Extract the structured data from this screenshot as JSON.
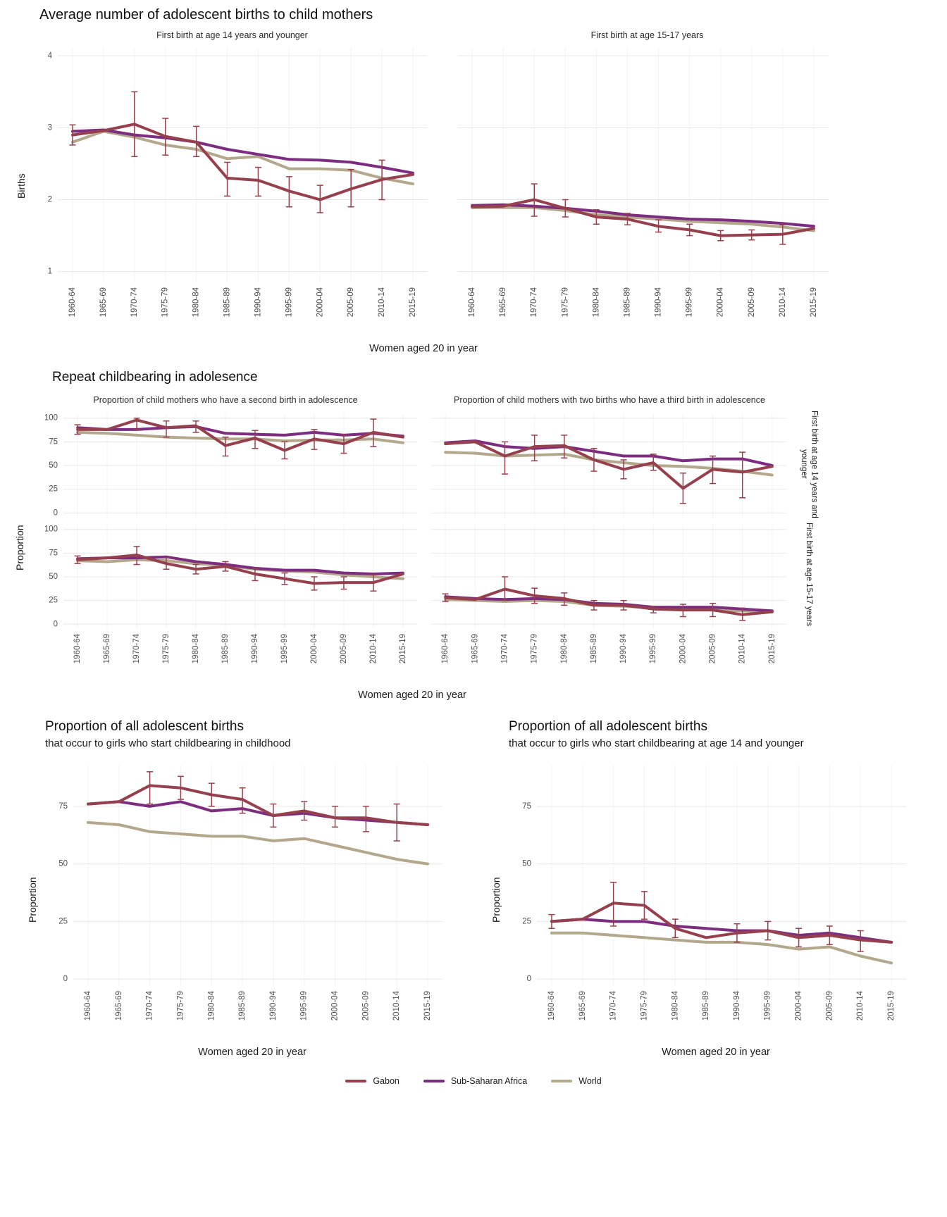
{
  "sections": {
    "s1": {
      "title": "Average number of adolescent births to child mothers",
      "ylab": "Births",
      "xlab": "Women aged 20 in year"
    },
    "s2": {
      "title": "Repeat childbearing in adolesence",
      "ylab": "Proportion",
      "xlab": "Women aged 20 in year",
      "col_titles": [
        "Proportion of child mothers who have a second birth in adolescence",
        "Proportion of child mothers with two births who have a third birth in adolescence"
      ],
      "row_strips": [
        "First birth at age 14 years and younger",
        "First birth at age 15-17 years"
      ]
    },
    "s3": {
      "left": {
        "title": "Proportion of all adolescent births",
        "subtitle": "that occur to girls who start childbearing in childhood",
        "ylab": "Proportion",
        "xlab": "Women aged 20 in year"
      },
      "right": {
        "title": "Proportion of all adolescent births",
        "subtitle": "that occur to girls who start childbearing at age 14 and younger",
        "ylab": "Proportion",
        "xlab": "Women aged 20 in year"
      }
    }
  },
  "legend": {
    "items": [
      {
        "label": "Gabon",
        "color": "#96404e"
      },
      {
        "label": "Sub-Saharan Africa",
        "color": "#7d2d80"
      },
      {
        "label": "World",
        "color": "#b3a78c"
      }
    ]
  },
  "chart_data": [
    {
      "type": "line",
      "title": "First birth at age 14 years and younger",
      "categories": [
        "1960-64",
        "1965-69",
        "1970-74",
        "1975-79",
        "1980-84",
        "1985-89",
        "1990-94",
        "1995-99",
        "2000-04",
        "2005-09",
        "2010-14",
        "2015-19"
      ],
      "ylim": [
        0.85,
        4.12
      ],
      "yticks": [
        1,
        2,
        3,
        4
      ],
      "series": [
        {
          "name": "Gabon",
          "color": "#96404e",
          "values": [
            2.9,
            2.96,
            3.05,
            2.88,
            2.8,
            2.3,
            2.27,
            2.12,
            2.0,
            2.15,
            2.28,
            2.35
          ],
          "err_low": [
            2.76,
            null,
            2.6,
            2.62,
            2.6,
            2.05,
            2.05,
            1.9,
            1.82,
            1.9,
            2.0,
            null
          ],
          "err_high": [
            3.04,
            null,
            3.5,
            3.13,
            3.02,
            2.52,
            2.45,
            2.32,
            2.2,
            2.42,
            2.55,
            null
          ]
        },
        {
          "name": "Sub-Saharan Africa",
          "color": "#7d2d80",
          "values": [
            2.95,
            2.97,
            2.9,
            2.86,
            2.8,
            2.7,
            2.63,
            2.56,
            2.55,
            2.52,
            2.45,
            2.37
          ]
        },
        {
          "name": "World",
          "color": "#b3a78c",
          "values": [
            2.8,
            2.95,
            2.87,
            2.76,
            2.7,
            2.57,
            2.6,
            2.43,
            2.43,
            2.41,
            2.3,
            2.22
          ]
        }
      ]
    },
    {
      "type": "line",
      "title": "First birth at age 15-17 years",
      "categories": [
        "1960-64",
        "1965-69",
        "1970-74",
        "1975-79",
        "1980-84",
        "1985-89",
        "1990-94",
        "1995-99",
        "2000-04",
        "2005-09",
        "2010-14",
        "2015-19"
      ],
      "ylim": [
        0.85,
        4.12
      ],
      "yticks": [
        1,
        2,
        3,
        4
      ],
      "series": [
        {
          "name": "Gabon",
          "color": "#96404e",
          "values": [
            1.9,
            1.91,
            2.0,
            1.88,
            1.76,
            1.73,
            1.63,
            1.58,
            1.5,
            1.51,
            1.52,
            1.6
          ],
          "err_low": [
            null,
            null,
            1.77,
            1.76,
            1.66,
            1.65,
            1.55,
            1.5,
            1.43,
            1.44,
            1.38,
            null
          ],
          "err_high": [
            null,
            null,
            2.22,
            2.0,
            1.86,
            1.81,
            1.72,
            1.66,
            1.57,
            1.58,
            1.65,
            null
          ]
        },
        {
          "name": "Sub-Saharan Africa",
          "color": "#7d2d80",
          "values": [
            1.92,
            1.93,
            1.91,
            1.88,
            1.84,
            1.79,
            1.76,
            1.73,
            1.72,
            1.7,
            1.67,
            1.63
          ]
        },
        {
          "name": "World",
          "color": "#b3a78c",
          "values": [
            1.89,
            1.89,
            1.89,
            1.85,
            1.79,
            1.76,
            1.73,
            1.7,
            1.68,
            1.66,
            1.62,
            1.57
          ]
        }
      ]
    },
    {
      "type": "line",
      "title": "Second birth in adolescence",
      "col_title": "Proportion of child mothers who have a second birth in adolescence",
      "row_strip": "First birth at age 14 years and younger",
      "categories": [
        "1960-64",
        "1965-69",
        "1970-74",
        "1975-79",
        "1980-84",
        "1985-89",
        "1990-94",
        "1995-99",
        "2000-04",
        "2005-09",
        "2010-14",
        "2015-19"
      ],
      "ylim": [
        -5,
        105
      ],
      "yticks": [
        0,
        25,
        50,
        75,
        100
      ],
      "series": [
        {
          "name": "Gabon",
          "color": "#96404e",
          "values": [
            88,
            88,
            98,
            90,
            92,
            71,
            79,
            66,
            78,
            73,
            85,
            80
          ],
          "err_low": [
            83,
            null,
            88,
            80,
            85,
            60,
            68,
            57,
            67,
            63,
            70,
            null
          ],
          "err_high": [
            93,
            null,
            100,
            97,
            97,
            80,
            87,
            75,
            88,
            82,
            99,
            null
          ]
        },
        {
          "name": "Sub-Saharan Africa",
          "color": "#7d2d80",
          "values": [
            90,
            88,
            88,
            90,
            91,
            84,
            83,
            82,
            85,
            82,
            84,
            81
          ]
        },
        {
          "name": "World",
          "color": "#b3a78c",
          "values": [
            85,
            84,
            82,
            80,
            79,
            78,
            78,
            76,
            77,
            77,
            78,
            74
          ]
        }
      ]
    },
    {
      "type": "line",
      "title": "Third birth in adolescence",
      "col_title": "Proportion of child mothers with two births who have a third birth in adolescence",
      "row_strip": "First birth at age 14 years and younger",
      "categories": [
        "1960-64",
        "1965-69",
        "1970-74",
        "1975-79",
        "1980-84",
        "1985-89",
        "1990-94",
        "1995-99",
        "2000-04",
        "2005-09",
        "2010-14",
        "2015-19"
      ],
      "ylim": [
        -5,
        105
      ],
      "yticks": [
        0,
        25,
        50,
        75,
        100
      ],
      "series": [
        {
          "name": "Gabon",
          "color": "#96404e",
          "values": [
            73,
            75,
            60,
            70,
            71,
            56,
            46,
            53,
            26,
            46,
            43,
            49
          ],
          "err_low": [
            null,
            null,
            41,
            55,
            58,
            44,
            36,
            45,
            10,
            31,
            16,
            null
          ],
          "err_high": [
            null,
            null,
            75,
            82,
            82,
            68,
            56,
            62,
            42,
            60,
            64,
            null
          ]
        },
        {
          "name": "Sub-Saharan Africa",
          "color": "#7d2d80",
          "values": [
            74,
            76,
            70,
            68,
            70,
            65,
            60,
            60,
            55,
            57,
            57,
            50
          ]
        },
        {
          "name": "World",
          "color": "#b3a78c",
          "values": [
            64,
            63,
            60,
            61,
            62,
            56,
            53,
            50,
            49,
            47,
            44,
            40
          ]
        }
      ]
    },
    {
      "type": "line",
      "title": "Second birth in adolescence",
      "col_title": "Proportion of child mothers who have a second birth in adolescence",
      "row_strip": "First birth at age 15-17 years",
      "categories": [
        "1960-64",
        "1965-69",
        "1970-74",
        "1975-79",
        "1980-84",
        "1985-89",
        "1990-94",
        "1995-99",
        "2000-04",
        "2005-09",
        "2010-14",
        "2015-19"
      ],
      "ylim": [
        -5,
        105
      ],
      "yticks": [
        0,
        25,
        50,
        75,
        100
      ],
      "series": [
        {
          "name": "Gabon",
          "color": "#96404e",
          "values": [
            68,
            70,
            73,
            64,
            58,
            61,
            53,
            48,
            43,
            44,
            44,
            53
          ],
          "err_low": [
            64,
            null,
            63,
            58,
            53,
            56,
            46,
            42,
            36,
            37,
            35,
            null
          ],
          "err_high": [
            72,
            null,
            82,
            70,
            63,
            66,
            59,
            54,
            50,
            50,
            52,
            null
          ]
        },
        {
          "name": "Sub-Saharan Africa",
          "color": "#7d2d80",
          "values": [
            69,
            70,
            70,
            71,
            66,
            63,
            59,
            57,
            57,
            54,
            53,
            54
          ]
        },
        {
          "name": "World",
          "color": "#b3a78c",
          "values": [
            67,
            66,
            68,
            67,
            64,
            62,
            58,
            56,
            55,
            52,
            50,
            48
          ]
        }
      ]
    },
    {
      "type": "line",
      "title": "Third birth in adolescence",
      "col_title": "Proportion of child mothers with two births who have a third birth in adolescence",
      "row_strip": "First birth at age 15-17 years",
      "categories": [
        "1960-64",
        "1965-69",
        "1970-74",
        "1975-79",
        "1980-84",
        "1985-89",
        "1990-94",
        "1995-99",
        "2000-04",
        "2005-09",
        "2010-14",
        "2015-19"
      ],
      "ylim": [
        -5,
        105
      ],
      "yticks": [
        0,
        25,
        50,
        75,
        100
      ],
      "series": [
        {
          "name": "Gabon",
          "color": "#96404e",
          "values": [
            28,
            26,
            37,
            30,
            27,
            20,
            20,
            16,
            15,
            15,
            10,
            13
          ],
          "err_low": [
            24,
            null,
            25,
            22,
            20,
            15,
            15,
            12,
            8,
            8,
            4,
            null
          ],
          "err_high": [
            32,
            null,
            50,
            38,
            33,
            25,
            25,
            19,
            21,
            22,
            17,
            null
          ]
        },
        {
          "name": "Sub-Saharan Africa",
          "color": "#7d2d80",
          "values": [
            29,
            27,
            26,
            27,
            26,
            22,
            21,
            18,
            18,
            18,
            16,
            14
          ]
        },
        {
          "name": "World",
          "color": "#b3a78c",
          "values": [
            26,
            25,
            24,
            25,
            24,
            20,
            19,
            17,
            16,
            15,
            14,
            13
          ]
        }
      ]
    },
    {
      "type": "line",
      "title": "Proportion of all adolescent births that occur to girls who start childbearing in childhood",
      "categories": [
        "1960-64",
        "1965-69",
        "1970-74",
        "1975-79",
        "1980-84",
        "1985-89",
        "1990-94",
        "1995-99",
        "2000-04",
        "2005-09",
        "2010-14",
        "2015-19"
      ],
      "ylim": [
        -3,
        93
      ],
      "yticks": [
        0,
        25,
        50,
        75
      ],
      "series": [
        {
          "name": "Gabon",
          "color": "#96404e",
          "values": [
            76,
            77,
            84,
            83,
            80,
            78,
            71,
            73,
            70,
            70,
            68,
            67
          ],
          "err_low": [
            null,
            null,
            76,
            78,
            75,
            72,
            66,
            69,
            66,
            64,
            60,
            null
          ],
          "err_high": [
            null,
            null,
            90,
            88,
            85,
            83,
            76,
            77,
            75,
            75,
            76,
            null
          ]
        },
        {
          "name": "Sub-Saharan Africa",
          "color": "#7d2d80",
          "values": [
            76,
            77,
            75,
            77,
            73,
            74,
            71,
            72,
            70,
            69,
            68,
            67
          ]
        },
        {
          "name": "World",
          "color": "#b3a78c",
          "values": [
            68,
            67,
            64,
            63,
            62,
            62,
            60,
            61,
            58,
            55,
            52,
            50
          ]
        }
      ]
    },
    {
      "type": "line",
      "title": "Proportion of all adolescent births that occur to girls who start childbearing at age 14 and younger",
      "categories": [
        "1960-64",
        "1965-69",
        "1970-74",
        "1975-79",
        "1980-84",
        "1985-89",
        "1990-94",
        "1995-99",
        "2000-04",
        "2005-09",
        "2010-14",
        "2015-19"
      ],
      "ylim": [
        -3,
        93
      ],
      "yticks": [
        0,
        25,
        50,
        75
      ],
      "series": [
        {
          "name": "Gabon",
          "color": "#96404e",
          "values": [
            25,
            26,
            33,
            32,
            22,
            18,
            20,
            21,
            18,
            19,
            17,
            16
          ],
          "err_low": [
            22,
            null,
            23,
            26,
            18,
            null,
            16,
            17,
            14,
            15,
            12,
            null
          ],
          "err_high": [
            28,
            null,
            42,
            38,
            26,
            null,
            24,
            25,
            22,
            23,
            21,
            null
          ]
        },
        {
          "name": "Sub-Saharan Africa",
          "color": "#7d2d80",
          "values": [
            25,
            26,
            25,
            25,
            23,
            22,
            21,
            21,
            19,
            20,
            18,
            16
          ]
        },
        {
          "name": "World",
          "color": "#b3a78c",
          "values": [
            20,
            20,
            19,
            18,
            17,
            16,
            16,
            15,
            13,
            14,
            10,
            7
          ]
        }
      ]
    }
  ]
}
